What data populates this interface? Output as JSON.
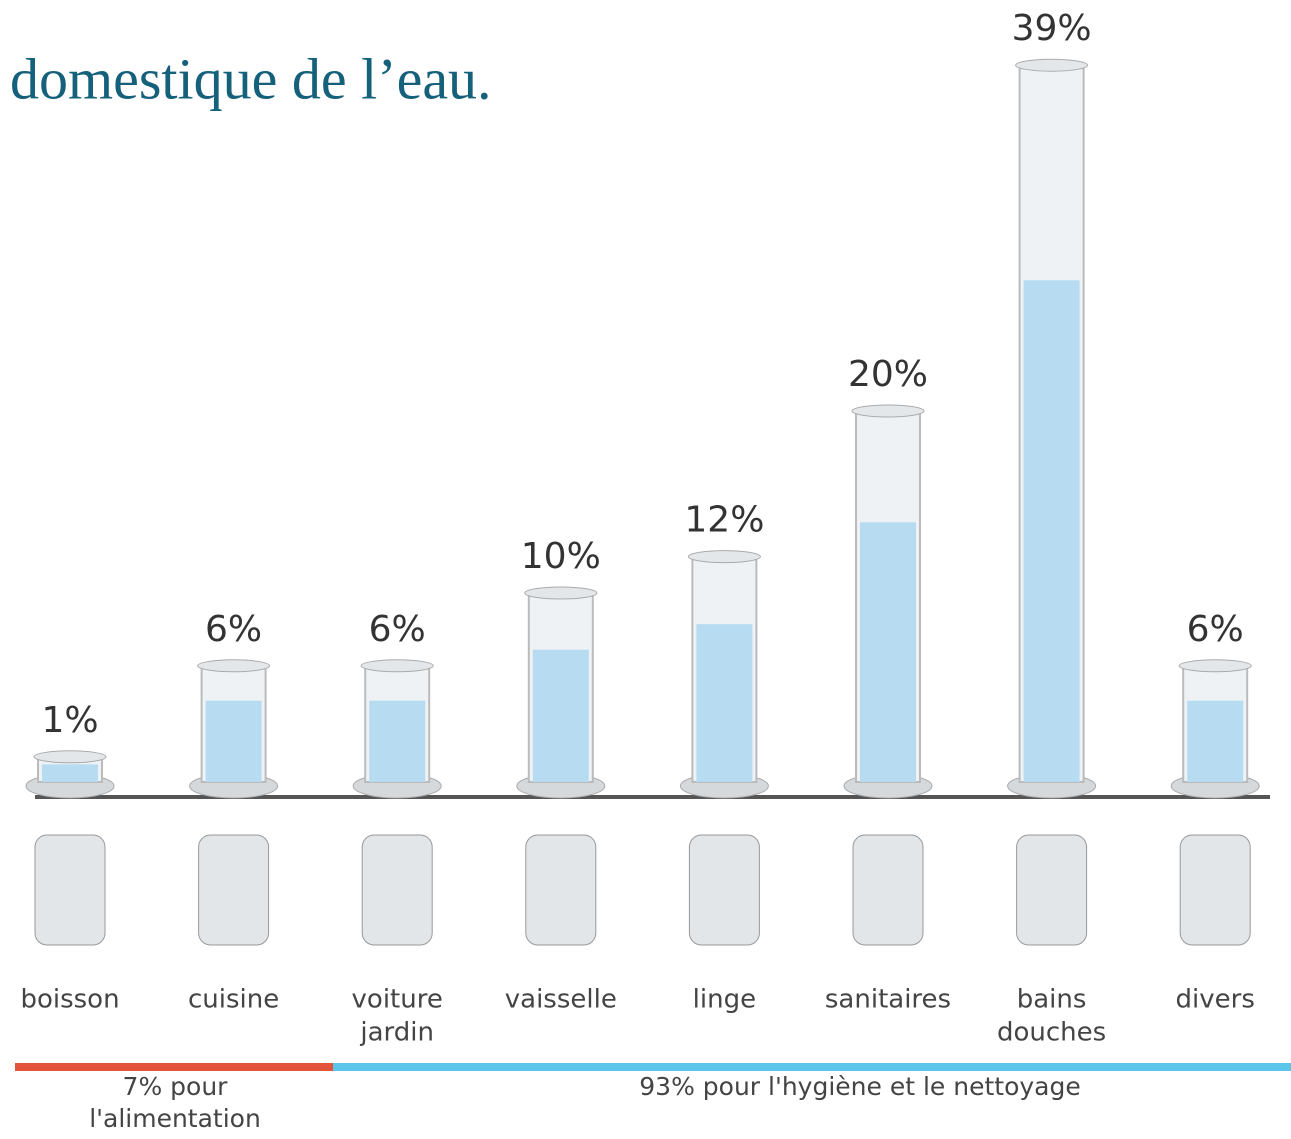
{
  "chart_data": {
    "type": "bar",
    "title": "domestique de l’eau.",
    "categories": [
      [
        "boisson"
      ],
      [
        "cuisine"
      ],
      [
        "voiture",
        "jardin"
      ],
      [
        "vaisselle"
      ],
      [
        "linge"
      ],
      [
        "sanitaires"
      ],
      [
        "bains",
        "douches"
      ],
      [
        "divers"
      ]
    ],
    "values": [
      1,
      6,
      6,
      10,
      12,
      20,
      39,
      6
    ],
    "value_labels": [
      "1%",
      "6%",
      "6%",
      "10%",
      "12%",
      "20%",
      "39%",
      "6%"
    ],
    "color": "#b7dcf2",
    "groups": [
      {
        "label": [
          "7% pour",
          "l'alimentation"
        ],
        "color": "#e2553a"
      },
      {
        "label": [
          "93% pour l'hygiène et le nettoyage"
        ],
        "color": "#5cc6ea"
      }
    ]
  }
}
